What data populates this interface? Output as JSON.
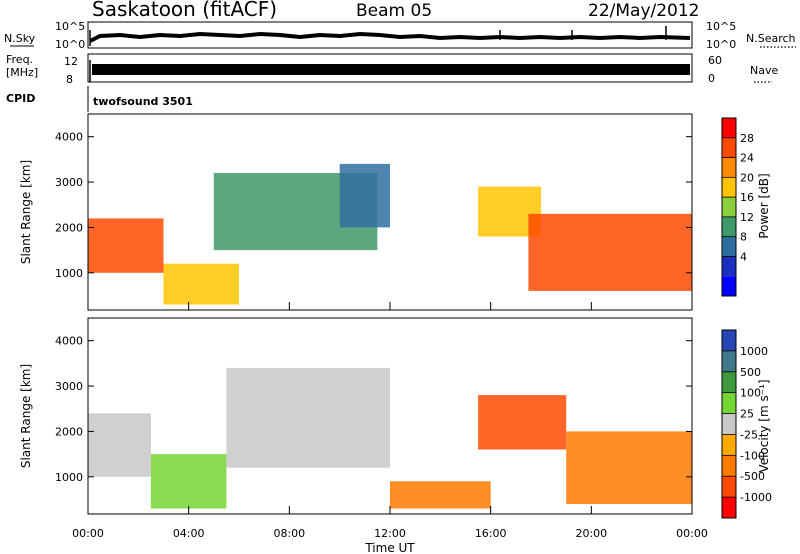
{
  "header": {
    "station": "Saskatoon (fitACF)",
    "beam": "Beam 05",
    "date": "22/May/2012"
  },
  "top_panels": {
    "nsky_label": "N.Sky",
    "nsky_ticks": [
      "10^5",
      "10^0"
    ],
    "nsearch_label": "N.Search",
    "nsearch_ticks": [
      "10^5",
      "10^0"
    ],
    "freq_label_line1": "Freq.",
    "freq_label_line2": "[MHz]",
    "freq_ticks": [
      "12",
      "8"
    ],
    "nave_label": "Nave",
    "nave_ticks": [
      "60",
      "0"
    ],
    "cpid_label": "CPID",
    "cpid_value": "twofsound 3501"
  },
  "colorbars": {
    "power": {
      "label": "Power [dB]",
      "ticks": [
        "28",
        "24",
        "20",
        "16",
        "12",
        "8",
        "4"
      ],
      "colors": [
        "#ff0000",
        "#ff4a00",
        "#ff8c00",
        "#ffc400",
        "#8ccf3c",
        "#3f9a6a",
        "#2f6f9f",
        "#1c2fbf",
        "#0000ff"
      ]
    },
    "velocity": {
      "label": "Velocity [m s⁻¹]",
      "ticks": [
        "1000",
        "500",
        "100",
        "25",
        "-25",
        "-100",
        "-500",
        "-1000"
      ],
      "colors": [
        "#2646b5",
        "#3f7a8c",
        "#3c9a3c",
        "#74d634",
        "#c8c8c8",
        "#ffaa00",
        "#ff7a00",
        "#ff4a00",
        "#ff0000"
      ]
    }
  },
  "axes": {
    "ylabel": "Slant Range [km]",
    "yticks": [
      "4000",
      "3000",
      "2000",
      "1000"
    ],
    "xticks": [
      "00:00",
      "04:00",
      "08:00",
      "12:00",
      "16:00",
      "20:00",
      "00:00"
    ],
    "xlabel": "Time UT"
  },
  "chart_data": [
    {
      "type": "heatmap",
      "title": "Power",
      "ylabel": "Slant Range [km]",
      "ylim": [
        180,
        4500
      ],
      "xlim_hours": [
        0,
        24
      ],
      "zlabel": "Power [dB]",
      "zrange": [
        0,
        32
      ],
      "bands": [
        {
          "t0": 0.0,
          "t1": 3.0,
          "r0": 1000,
          "r1": 2200,
          "value": 26
        },
        {
          "t0": 3.0,
          "t1": 6.0,
          "r0": 300,
          "r1": 1200,
          "value": 18
        },
        {
          "t0": 5.0,
          "t1": 11.5,
          "r0": 1500,
          "r1": 3200,
          "value": 14
        },
        {
          "t0": 10.0,
          "t1": 12.0,
          "r0": 2000,
          "r1": 3400,
          "value": 10
        },
        {
          "t0": 15.5,
          "t1": 18.0,
          "r0": 1800,
          "r1": 2900,
          "value": 20
        },
        {
          "t0": 17.5,
          "t1": 24.0,
          "r0": 600,
          "r1": 2300,
          "value": 26
        }
      ]
    },
    {
      "type": "heatmap",
      "title": "Velocity",
      "ylabel": "Slant Range [km]",
      "ylim": [
        180,
        4500
      ],
      "xlim_hours": [
        0,
        24
      ],
      "zlabel": "Velocity [m s^-1]",
      "zrange": [
        -1000,
        1000
      ],
      "bands": [
        {
          "t0": 0.0,
          "t1": 2.5,
          "r0": 1000,
          "r1": 2400,
          "value": 0
        },
        {
          "t0": 2.5,
          "t1": 5.5,
          "r0": 300,
          "r1": 1500,
          "value": 80
        },
        {
          "t0": 5.5,
          "t1": 12.0,
          "r0": 1200,
          "r1": 3400,
          "value": 0
        },
        {
          "t0": 12.0,
          "t1": 16.0,
          "r0": 300,
          "r1": 900,
          "value": -120
        },
        {
          "t0": 15.5,
          "t1": 19.0,
          "r0": 1600,
          "r1": 2800,
          "value": -600
        },
        {
          "t0": 19.0,
          "t1": 24.0,
          "r0": 400,
          "r1": 2000,
          "value": -300
        }
      ]
    }
  ]
}
